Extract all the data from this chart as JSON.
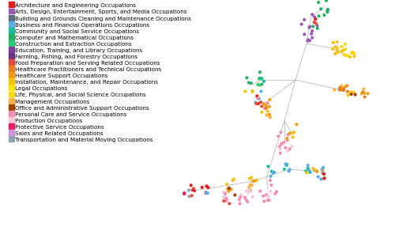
{
  "legend_entries": [
    {
      "label": "Architecture and Engineering Occupations",
      "color": "#e31a1c"
    },
    {
      "label": "Arts, Design, Entertainment, Sports, and Media Occupations",
      "color": "#9b59b6"
    },
    {
      "label": "Building and Grounds Cleaning and Maintenance Occupations",
      "color": "#5d6d7e"
    },
    {
      "label": "Business and Financial Operations Occupations",
      "color": "#5dade2"
    },
    {
      "label": "Community and Social Service Occupations",
      "color": "#1abc9c"
    },
    {
      "label": "Computer and Mathematical Occupations",
      "color": "#27ae60"
    },
    {
      "label": "Construction and Extraction Occupations",
      "color": "#2ecc71"
    },
    {
      "label": "Education, Training, and Library Occupations",
      "color": "#7d3c98"
    },
    {
      "label": "Farming, Fishing, and Forestry Occupations",
      "color": "#6c3483"
    },
    {
      "label": "Food Preparation and Serving Related Occupations",
      "color": "#e74c3c"
    },
    {
      "label": "Healthcare Practitioners and Technical Occupations",
      "color": "#e67e22"
    },
    {
      "label": "Healthcare Support Occupations",
      "color": "#f39c12"
    },
    {
      "label": "Installation, Maintenance, and Repair Occupations",
      "color": "#f1c40f"
    },
    {
      "label": "Legal Occupations",
      "color": "#f9e400"
    },
    {
      "label": "Life, Physical, and Social Science Occupations",
      "color": "#ffd700"
    },
    {
      "label": "Management Occupations",
      "color": "#ffb347"
    },
    {
      "label": "Office and Administrative Support Occupations",
      "color": "#a04000"
    },
    {
      "label": "Personal Care and Service Occupations",
      "color": "#f48fb1"
    },
    {
      "label": "Production Occupations",
      "color": "#f8c8d4"
    },
    {
      "label": "Protective Service Occupations",
      "color": "#e91e63"
    },
    {
      "label": "Sales and Related Occupations",
      "color": "#ce93d8"
    },
    {
      "label": "Transportation and Material Moving Occupations",
      "color": "#90a4ae"
    }
  ],
  "C": {
    "arch": "#e31a1c",
    "arts": "#9b59b6",
    "build": "#5d6d7e",
    "biz": "#5dade2",
    "comm": "#1abc9c",
    "comp": "#27ae60",
    "const": "#2ecc71",
    "edu": "#7d3c98",
    "farm": "#6c3483",
    "food": "#e74c3c",
    "health_p": "#e67e22",
    "health_s": "#f39c12",
    "install": "#f1c40f",
    "legal": "#f9e400",
    "life": "#ffd700",
    "mgmt": "#ffb347",
    "office": "#a04000",
    "personal": "#f48fb1",
    "prod": "#f8c8d4",
    "protect": "#e91e63",
    "sales": "#ce93d8",
    "transport": "#90a4ae"
  },
  "background_color": "#ffffff",
  "edge_color": "#bbbbbb",
  "legend_fontsize": 5.2
}
